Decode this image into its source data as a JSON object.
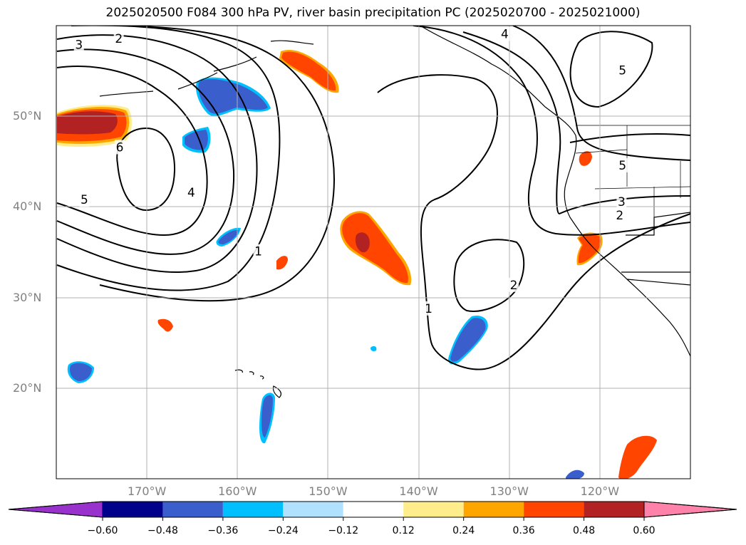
{
  "title": "2025020500 F084 300 hPa PV, river basin precipitation PC (2025020700 - 2025021000)",
  "map": {
    "lon_range": [
      -180,
      -110
    ],
    "lat_range": [
      10,
      60
    ],
    "lat_ticks": [
      {
        "value": 20,
        "label": "20°N"
      },
      {
        "value": 30,
        "label": "30°N"
      },
      {
        "value": 40,
        "label": "40°N"
      },
      {
        "value": 50,
        "label": "50°N"
      }
    ],
    "lon_ticks": [
      {
        "value": -170,
        "label": "170°W"
      },
      {
        "value": -160,
        "label": "160°W"
      },
      {
        "value": -150,
        "label": "150°W"
      },
      {
        "value": -140,
        "label": "140°W"
      },
      {
        "value": -130,
        "label": "130°W"
      },
      {
        "value": -120,
        "label": "120°W"
      }
    ],
    "gridlines": true,
    "pv_contour_labels": [
      {
        "text": "2",
        "lon": -173.1,
        "lat": 58.6
      },
      {
        "text": "3",
        "lon": -177.5,
        "lat": 57.9
      },
      {
        "text": "4",
        "lon": -130.5,
        "lat": 59.1
      },
      {
        "text": "5",
        "lon": -117.5,
        "lat": 55.1
      },
      {
        "text": "6",
        "lon": -173.0,
        "lat": 46.6
      },
      {
        "text": "5",
        "lon": -176.9,
        "lat": 40.8
      },
      {
        "text": "4",
        "lon": -165.1,
        "lat": 41.6
      },
      {
        "text": "1",
        "lon": -157.7,
        "lat": 35.1
      },
      {
        "text": "2",
        "lon": -129.5,
        "lat": 31.4
      },
      {
        "text": "1",
        "lon": -138.9,
        "lat": 28.8
      },
      {
        "text": "5",
        "lon": -117.5,
        "lat": 44.6
      },
      {
        "text": "3",
        "lon": -117.6,
        "lat": 40.6
      },
      {
        "text": "2",
        "lon": -117.8,
        "lat": 39.1
      }
    ]
  },
  "colorbar": {
    "ticks": [
      "−0.60",
      "−0.48",
      "−0.36",
      "−0.24",
      "−0.12",
      "0.12",
      "0.24",
      "0.36",
      "0.48",
      "0.60"
    ],
    "colors": [
      "#9932cc",
      "#00008b",
      "#3a5fcd",
      "#00bfff",
      "#b0e2ff",
      "#ffffff",
      "#ffec8b",
      "#ffa500",
      "#ff4500",
      "#b22222",
      "#ff82ab"
    ]
  }
}
